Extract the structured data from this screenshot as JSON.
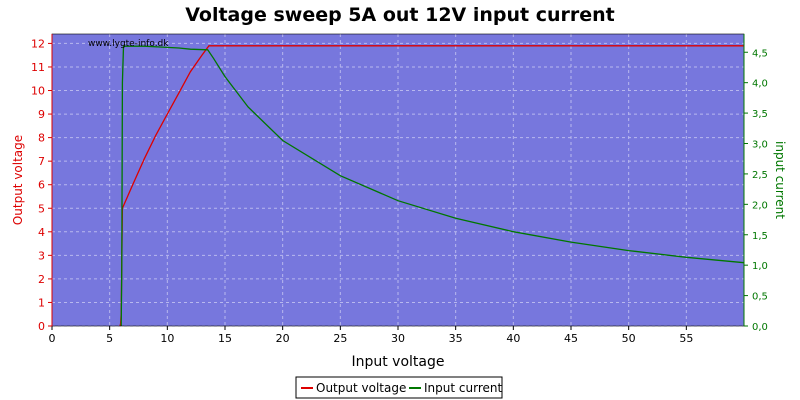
{
  "chart_data": {
    "type": "line",
    "title": "Voltage sweep 5A out 12V input current",
    "xlabel": "Input voltage",
    "ylabel_left": "Output voltage",
    "ylabel_right": "input current",
    "watermark": "www.lygte-info.dk",
    "xlim": [
      0,
      60
    ],
    "ylim_left": [
      0,
      12.4
    ],
    "ylim_right": [
      0,
      4.8
    ],
    "x_ticks": [
      0,
      5,
      10,
      15,
      20,
      25,
      30,
      35,
      40,
      45,
      50,
      55
    ],
    "y_left_ticks": [
      0,
      1,
      2,
      3,
      4,
      5,
      6,
      7,
      8,
      9,
      10,
      11,
      12
    ],
    "y_right_ticks": [
      "0,0",
      "0,5",
      "1,0",
      "1,5",
      "2,0",
      "2,5",
      "3,0",
      "3,5",
      "4,0",
      "4,5"
    ],
    "y_right_tick_values": [
      0,
      0.5,
      1.0,
      1.5,
      2.0,
      2.5,
      3.0,
      3.5,
      4.0,
      4.5
    ],
    "grid": true,
    "legend_position": "bottom-center",
    "colors": {
      "plot_background": "#7777dd",
      "grid": "#b8b8ee",
      "output_voltage": "#dd0000",
      "input_current": "#007700"
    },
    "series": [
      {
        "name": "Output voltage",
        "axis": "left",
        "x": [
          5.9,
          5.95,
          6.0,
          6.1,
          7,
          8,
          9,
          10,
          11,
          12,
          13,
          13.6,
          14,
          20,
          30,
          40,
          50,
          60
        ],
        "y": [
          0,
          0.1,
          0.5,
          5.0,
          6.0,
          7.1,
          8.1,
          9.0,
          9.9,
          10.8,
          11.5,
          11.9,
          11.9,
          11.9,
          11.9,
          11.9,
          11.9,
          11.9
        ]
      },
      {
        "name": "Input current",
        "axis": "right",
        "x": [
          6.0,
          6.05,
          6.1,
          6.2,
          8,
          10,
          11,
          12,
          13.5,
          14,
          15,
          17,
          20,
          25,
          30,
          35,
          40,
          45,
          50,
          55,
          60
        ],
        "y": [
          0,
          1.0,
          4.0,
          4.6,
          4.6,
          4.58,
          4.57,
          4.55,
          4.54,
          4.4,
          4.1,
          3.6,
          3.05,
          2.47,
          2.06,
          1.77,
          1.55,
          1.38,
          1.24,
          1.13,
          1.04
        ]
      }
    ]
  }
}
